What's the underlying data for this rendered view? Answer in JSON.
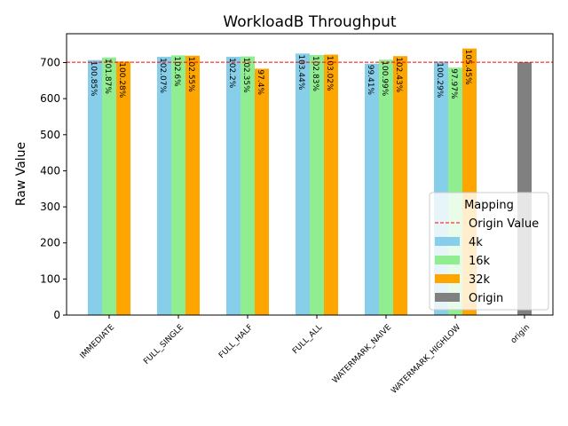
{
  "chart_data": {
    "type": "bar",
    "title": "WorkloadB Throughput",
    "xlabel": "",
    "ylabel": "Raw Value",
    "ylim": [
      0,
      780
    ],
    "yticks": [
      0,
      100,
      200,
      300,
      400,
      500,
      600,
      700
    ],
    "categories": [
      "IMMEDIATE",
      "FULL_SINGLE",
      "FULL_HALF",
      "FULL_ALL",
      "WATERMARK_NAIVE",
      "WATERMARK_HIGHLOW",
      "origin"
    ],
    "series": [
      {
        "name": "4k",
        "color": "#87ceeb",
        "values": [
          707,
          716,
          716,
          725,
          697,
          703,
          null
        ],
        "labels": [
          "100.85%",
          "102.07%",
          "102.2%",
          "103.44%",
          "99.41%",
          "100.29%",
          ""
        ]
      },
      {
        "name": "16k",
        "color": "#90ee90",
        "values": [
          714,
          720,
          717,
          721,
          708,
          686,
          null
        ],
        "labels": [
          "101.87%",
          "102.6%",
          "102.35%",
          "102.83%",
          "100.99%",
          "97.97%",
          ""
        ]
      },
      {
        "name": "32k",
        "color": "#ffa500",
        "values": [
          703,
          719,
          683,
          722,
          718,
          739,
          null
        ],
        "labels": [
          "100.28%",
          "102.55%",
          "97.4%",
          "103.02%",
          "102.43%",
          "105.45%",
          ""
        ]
      },
      {
        "name": "Origin",
        "color": "#808080",
        "values": [
          null,
          null,
          null,
          null,
          null,
          null,
          701
        ],
        "labels": [
          "",
          "",
          "",
          "",
          "",
          "",
          ""
        ]
      }
    ],
    "reference_line": {
      "name": "Origin Value",
      "value": 701,
      "color": "#ff0000",
      "style": "dashed"
    },
    "legend": {
      "title": "Mapping",
      "placement": "lower-right"
    },
    "grid": false
  }
}
